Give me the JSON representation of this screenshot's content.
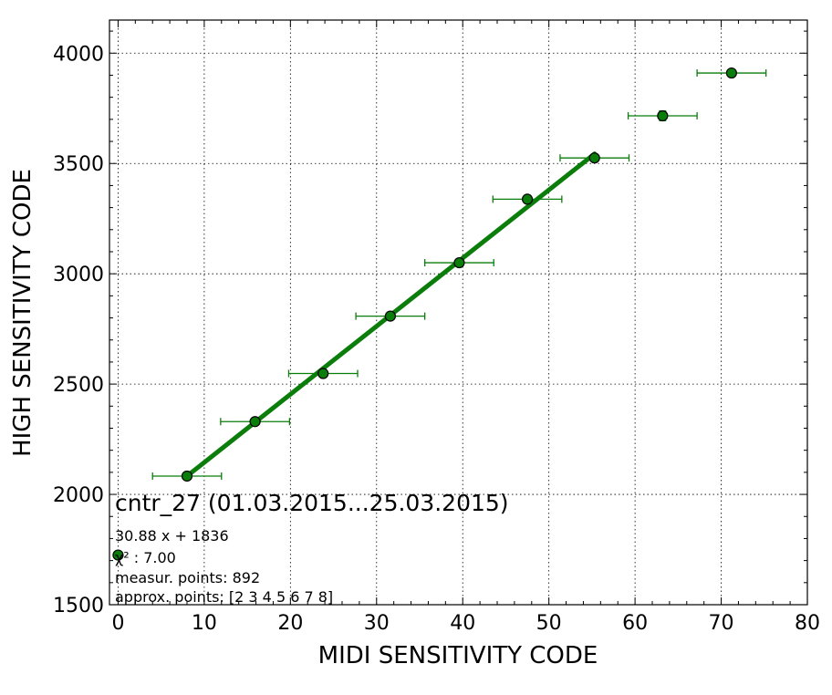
{
  "chart_data": {
    "type": "scatter",
    "title": "cntr_27 (01.03.2015...25.03.2015)",
    "xlabel": "MIDI SENSITIVITY CODE",
    "ylabel": "HIGH SENSITIVITY CODE",
    "xlim": [
      -1,
      80
    ],
    "ylim": [
      1500,
      4150
    ],
    "xticks": [
      0,
      10,
      20,
      30,
      40,
      50,
      60,
      70,
      80
    ],
    "yticks": [
      1500,
      2000,
      2500,
      3000,
      3500,
      4000
    ],
    "xtick_labels": [
      "0",
      "10",
      "20",
      "30",
      "40",
      "50",
      "60",
      "70",
      "80"
    ],
    "ytick_labels": [
      "1500",
      "2000",
      "2500",
      "3000",
      "3500",
      "4000"
    ],
    "grid": true,
    "colors": {
      "points": "#0b7d0b",
      "fit": "#0b7d0b",
      "marker_edge": "#000000"
    },
    "series": [
      {
        "marker": "circle",
        "points": [
          {
            "x": 0,
            "y": 1725,
            "xerr": 0,
            "yerr": 0
          },
          {
            "x": 8,
            "y": 2083,
            "xerr": 4,
            "yerr": 8
          },
          {
            "x": 15.9,
            "y": 2330,
            "xerr": 4,
            "yerr": 8
          },
          {
            "x": 23.8,
            "y": 2548,
            "xerr": 4,
            "yerr": 8
          },
          {
            "x": 31.6,
            "y": 2808,
            "xerr": 4,
            "yerr": 8
          },
          {
            "x": 39.6,
            "y": 3050,
            "xerr": 4,
            "yerr": 8
          },
          {
            "x": 47.5,
            "y": 3338,
            "xerr": 4,
            "yerr": 8
          },
          {
            "x": 55.3,
            "y": 3525,
            "xerr": 4,
            "yerr": 10
          },
          {
            "x": 63.2,
            "y": 3716,
            "xerr": 4,
            "yerr": 22
          },
          {
            "x": 71.2,
            "y": 3910,
            "xerr": 4,
            "yerr": 8
          }
        ]
      }
    ],
    "fit": {
      "slope": 30.88,
      "intercept": 1836,
      "x_start": 8,
      "x_end": 55.3
    },
    "annotations": [
      "30.88 x + 1836",
      "χ² : 7.00",
      "measur. points: 892",
      "approx. points: [2 3 4 5 6 7 8]"
    ]
  }
}
